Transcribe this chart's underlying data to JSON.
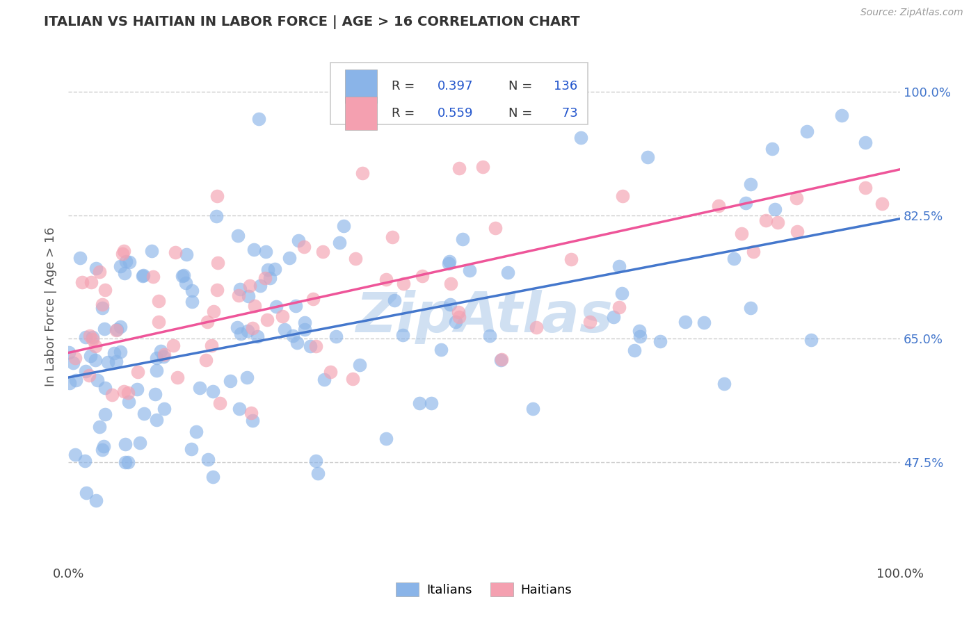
{
  "title": "ITALIAN VS HAITIAN IN LABOR FORCE | AGE > 16 CORRELATION CHART",
  "source_text": "Source: ZipAtlas.com",
  "ylabel": "In Labor Force | Age > 16",
  "xlim": [
    0.0,
    1.0
  ],
  "ylim": [
    0.33,
    1.06
  ],
  "x_tick_labels": [
    "0.0%",
    "100.0%"
  ],
  "y_tick_vals": [
    0.475,
    0.65,
    0.825,
    1.0
  ],
  "y_tick_labels": [
    "47.5%",
    "65.0%",
    "82.5%",
    "100.0%"
  ],
  "grid_color": "#cccccc",
  "background_color": "#ffffff",
  "watermark_text": "ZipAtlas",
  "watermark_color": "#aac8e8",
  "italian_color": "#8ab4e8",
  "haitian_color": "#f4a0b0",
  "italian_line_color": "#4477cc",
  "haitian_line_color": "#ee5599",
  "italian_R": 0.397,
  "italian_N": 136,
  "haitian_R": 0.559,
  "haitian_N": 73,
  "legend_color": "#2255cc",
  "italian_line_start_y": 0.595,
  "italian_line_end_y": 0.82,
  "haitian_line_start_y": 0.63,
  "haitian_line_end_y": 0.89
}
